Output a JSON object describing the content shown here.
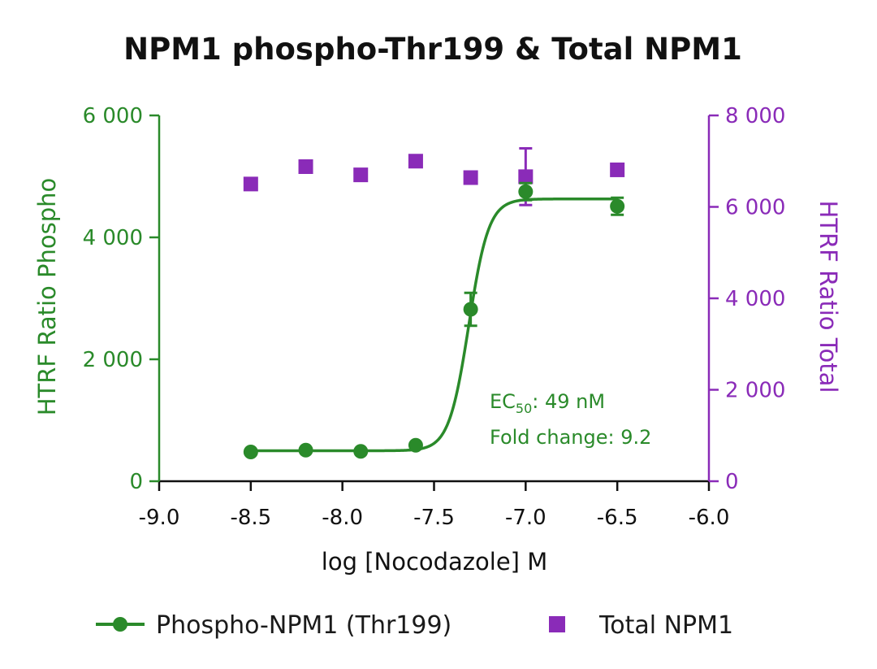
{
  "chart_data": {
    "type": "scatter",
    "title": "NPM1 phospho-Thr199 & Total NPM1",
    "xlabel": "log [Nocodazole] M",
    "ylabel_left": "HTRF Ratio Phospho",
    "ylabel_right": "HTRF Ratio Total",
    "xlim": [
      -9.0,
      -6.0
    ],
    "ylim_left": [
      0,
      6000
    ],
    "ylim_right": [
      0,
      8000
    ],
    "x_ticks": [
      -9.0,
      -8.5,
      -8.0,
      -7.5,
      -7.0,
      -6.5,
      -6.0
    ],
    "x_tick_labels": [
      "-9.0",
      "-8.5",
      "-8.0",
      "-7.5",
      "-7.0",
      "-6.5",
      "-6.0"
    ],
    "y_left_ticks": [
      0,
      2000,
      4000,
      6000
    ],
    "y_left_tick_labels": [
      "0",
      "2 000",
      "4 000",
      "6 000"
    ],
    "y_right_ticks": [
      0,
      2000,
      4000,
      6000,
      8000
    ],
    "y_right_tick_labels": [
      "0",
      "2 000",
      "4 000",
      "6 000",
      "8 000"
    ],
    "grid": false,
    "legend_position": "bottom",
    "series": [
      {
        "name": "Phospho-NPM1 (Thr199)",
        "axis": "left",
        "marker": "circle",
        "color": "#2a8a2a",
        "x": [
          -8.5,
          -8.2,
          -7.9,
          -7.6,
          -7.3,
          -7.0,
          -6.5
        ],
        "y": [
          480,
          510,
          490,
          590,
          2820,
          4750,
          4510
        ],
        "err": [
          0,
          0,
          0,
          0,
          270,
          140,
          140
        ],
        "fit": {
          "model": "4PL",
          "bottom": 500,
          "top": 4630,
          "logEC50": -7.31,
          "hill": 8
        }
      },
      {
        "name": "Total NPM1",
        "axis": "right",
        "marker": "square",
        "color": "#8a2bb8",
        "x": [
          -8.5,
          -8.2,
          -7.9,
          -7.6,
          -7.3,
          -7.0,
          -6.5
        ],
        "y": [
          6500,
          6880,
          6700,
          7000,
          6640,
          6660,
          6810
        ],
        "err": [
          0,
          0,
          0,
          0,
          0,
          620,
          0
        ]
      }
    ],
    "annotations": {
      "ec50_prefix": "EC",
      "ec50_sub": "50",
      "ec50_value": ": 49 nM",
      "fold_change": "Fold change: 9.2"
    }
  }
}
